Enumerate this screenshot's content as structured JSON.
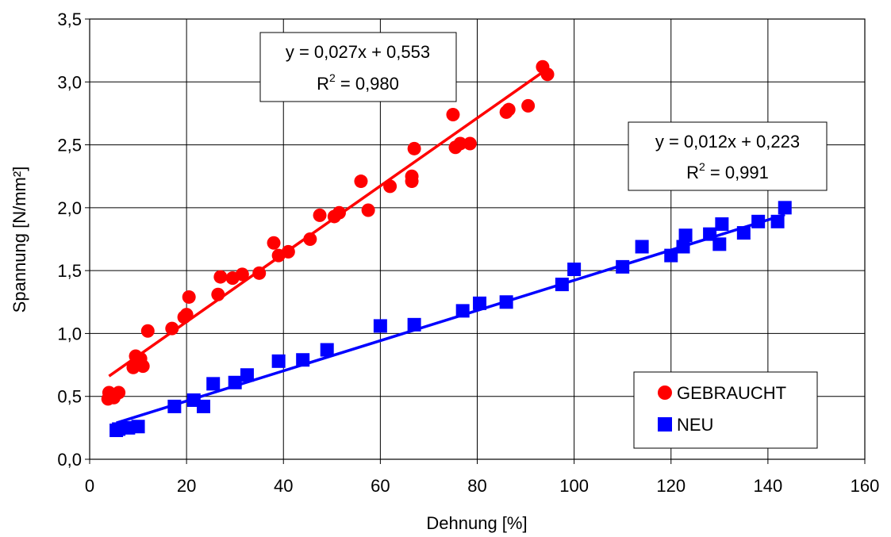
{
  "chart_data": {
    "type": "scatter",
    "title": "",
    "xlabel": "Dehnung [%]",
    "ylabel": "Spannung [N/mm²]",
    "xlim": [
      0,
      160
    ],
    "ylim": [
      0.0,
      3.5
    ],
    "xticks": [
      "0",
      "20",
      "40",
      "60",
      "80",
      "100",
      "120",
      "140",
      "160"
    ],
    "yticks": [
      "0,0",
      "0,5",
      "1,0",
      "1,5",
      "2,0",
      "2,5",
      "3,0",
      "3,5"
    ],
    "grid": true,
    "legend_position": "bottom-right",
    "series": [
      {
        "name": "GEBRAUCHT",
        "marker": "circle",
        "color": "#ff0000",
        "points": [
          [
            3.8,
            0.48
          ],
          [
            4.0,
            0.53
          ],
          [
            5.0,
            0.49
          ],
          [
            6.0,
            0.53
          ],
          [
            9.0,
            0.73
          ],
          [
            9.5,
            0.82
          ],
          [
            10.5,
            0.8
          ],
          [
            11.0,
            0.74
          ],
          [
            12.0,
            1.02
          ],
          [
            17.0,
            1.04
          ],
          [
            19.5,
            1.13
          ],
          [
            20.0,
            1.15
          ],
          [
            20.5,
            1.29
          ],
          [
            26.5,
            1.31
          ],
          [
            27.0,
            1.45
          ],
          [
            29.5,
            1.44
          ],
          [
            31.5,
            1.47
          ],
          [
            35.0,
            1.48
          ],
          [
            38.0,
            1.72
          ],
          [
            39.0,
            1.62
          ],
          [
            41.0,
            1.65
          ],
          [
            45.5,
            1.75
          ],
          [
            47.5,
            1.94
          ],
          [
            50.5,
            1.93
          ],
          [
            51.5,
            1.96
          ],
          [
            56.0,
            2.21
          ],
          [
            57.5,
            1.98
          ],
          [
            62.0,
            2.17
          ],
          [
            66.5,
            2.21
          ],
          [
            66.5,
            2.25
          ],
          [
            67.0,
            2.47
          ],
          [
            75.0,
            2.74
          ],
          [
            75.5,
            2.48
          ],
          [
            76.5,
            2.51
          ],
          [
            78.5,
            2.51
          ],
          [
            86.0,
            2.76
          ],
          [
            86.5,
            2.78
          ],
          [
            90.5,
            2.81
          ],
          [
            93.5,
            3.12
          ],
          [
            94.5,
            3.06
          ]
        ],
        "trendline": {
          "equation": "y = 0,027x + 0,553",
          "r2_label": "R",
          "r2_sup": "2",
          "r2_value": " = 0,980",
          "slope": 0.027,
          "intercept": 0.553,
          "x_range": [
            4,
            94.5
          ]
        }
      },
      {
        "name": "NEU",
        "marker": "square",
        "color": "#0000ff",
        "points": [
          [
            5.5,
            0.23
          ],
          [
            6.0,
            0.24
          ],
          [
            8.0,
            0.25
          ],
          [
            10.0,
            0.26
          ],
          [
            17.5,
            0.42
          ],
          [
            21.5,
            0.47
          ],
          [
            23.5,
            0.42
          ],
          [
            25.5,
            0.6
          ],
          [
            30.0,
            0.61
          ],
          [
            32.5,
            0.67
          ],
          [
            39.0,
            0.78
          ],
          [
            44.0,
            0.79
          ],
          [
            49.0,
            0.87
          ],
          [
            60.0,
            1.06
          ],
          [
            67.0,
            1.07
          ],
          [
            77.0,
            1.18
          ],
          [
            80.5,
            1.24
          ],
          [
            86.0,
            1.25
          ],
          [
            97.5,
            1.39
          ],
          [
            100.0,
            1.51
          ],
          [
            110.0,
            1.53
          ],
          [
            114.0,
            1.69
          ],
          [
            120.0,
            1.62
          ],
          [
            122.5,
            1.69
          ],
          [
            123.0,
            1.78
          ],
          [
            128.0,
            1.79
          ],
          [
            130.0,
            1.71
          ],
          [
            130.5,
            1.87
          ],
          [
            135.0,
            1.8
          ],
          [
            138.0,
            1.89
          ],
          [
            142.0,
            1.89
          ],
          [
            143.5,
            2.0
          ]
        ],
        "trendline": {
          "equation": "y = 0,012x + 0,223",
          "r2_label": "R",
          "r2_sup": "2",
          "r2_value": " = 0,991",
          "slope": 0.012,
          "intercept": 0.223,
          "x_range": [
            5.5,
            143.5
          ]
        }
      }
    ]
  }
}
